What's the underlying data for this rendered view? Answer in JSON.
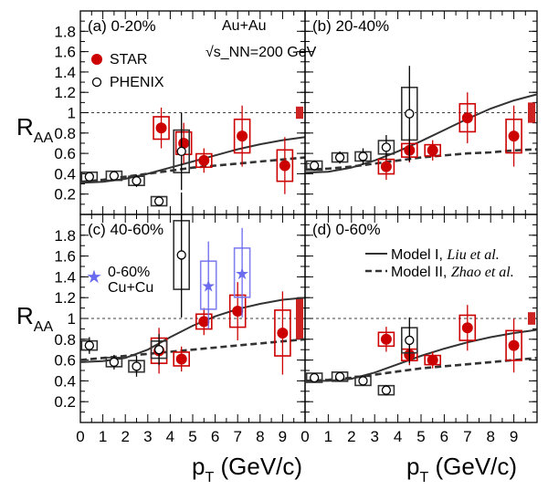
{
  "chart_data": [
    {
      "type": "scatter",
      "title": "(a) 0-20%",
      "annotation": "Au+Au",
      "annotation2": "√s_NN=200 GeV",
      "xlim": [
        0,
        10
      ],
      "ylim": [
        0,
        2
      ],
      "x_ticks": [
        0,
        1,
        2,
        3,
        4,
        5,
        6,
        7,
        8,
        9
      ],
      "y_ticks": [
        0.2,
        0.4,
        0.6,
        0.8,
        1,
        1.2,
        1.4,
        1.6,
        1.8
      ],
      "series": [
        {
          "name": "STAR",
          "color": "#cc0000",
          "marker": "filled-circle",
          "points": [
            {
              "x": 3.6,
              "y": 0.85,
              "err": 0.2
            },
            {
              "x": 4.6,
              "y": 0.7,
              "err": 0.2
            },
            {
              "x": 5.5,
              "y": 0.53,
              "err": 0.12
            },
            {
              "x": 7.2,
              "y": 0.77,
              "err": 0.3
            },
            {
              "x": 9.1,
              "y": 0.48,
              "err": 0.28
            }
          ]
        },
        {
          "name": "PHENIX",
          "color": "#000000",
          "marker": "open-circle",
          "points": [
            {
              "x": 0.4,
              "y": 0.37,
              "err": 0.04
            },
            {
              "x": 1.5,
              "y": 0.38,
              "err": 0.04
            },
            {
              "x": 2.5,
              "y": 0.33,
              "err": 0.06
            },
            {
              "x": 3.5,
              "y": 0.13,
              "err": 0.05
            },
            {
              "x": 4.5,
              "y": 0.62,
              "err": 0.38
            }
          ]
        }
      ],
      "model1": {
        "x": [
          0,
          1,
          2,
          3,
          4,
          5,
          6,
          7,
          8,
          9,
          10
        ],
        "y": [
          0.31,
          0.32,
          0.35,
          0.4,
          0.46,
          0.52,
          0.58,
          0.64,
          0.69,
          0.73,
          0.76
        ]
      },
      "model2": {
        "x": [
          0,
          1,
          2,
          3,
          4,
          5,
          6,
          7,
          8,
          9,
          10
        ],
        "y": [
          0.32,
          0.34,
          0.37,
          0.4,
          0.43,
          0.46,
          0.48,
          0.5,
          0.52,
          0.54,
          0.56
        ]
      }
    },
    {
      "type": "scatter",
      "title": "(b) 20-40%",
      "xlim": [
        0,
        10
      ],
      "ylim": [
        0,
        2
      ],
      "x_ticks": [
        0,
        1,
        2,
        3,
        4,
        5,
        6,
        7,
        8,
        9
      ],
      "y_ticks": [
        0.2,
        0.4,
        0.6,
        0.8,
        1,
        1.2,
        1.4,
        1.6,
        1.8
      ],
      "series": [
        {
          "name": "STAR",
          "color": "#cc0000",
          "marker": "filled-circle",
          "points": [
            {
              "x": 3.5,
              "y": 0.47,
              "err": 0.13
            },
            {
              "x": 4.5,
              "y": 0.63,
              "err": 0.12
            },
            {
              "x": 5.5,
              "y": 0.63,
              "err": 0.1
            },
            {
              "x": 7.0,
              "y": 0.95,
              "err": 0.25
            },
            {
              "x": 9.0,
              "y": 0.77,
              "err": 0.3
            }
          ]
        },
        {
          "name": "PHENIX",
          "color": "#000000",
          "marker": "open-circle",
          "points": [
            {
              "x": 0.4,
              "y": 0.48,
              "err": 0.05
            },
            {
              "x": 1.5,
              "y": 0.56,
              "err": 0.06
            },
            {
              "x": 2.5,
              "y": 0.57,
              "err": 0.08
            },
            {
              "x": 3.5,
              "y": 0.66,
              "err": 0.12
            },
            {
              "x": 4.5,
              "y": 0.99,
              "err": 0.47
            }
          ]
        }
      ],
      "model1": {
        "x": [
          0,
          1,
          2,
          3,
          4,
          5,
          6,
          7,
          8,
          9,
          10
        ],
        "y": [
          0.41,
          0.42,
          0.46,
          0.53,
          0.62,
          0.72,
          0.83,
          0.94,
          1.04,
          1.12,
          1.18
        ]
      },
      "model2": {
        "x": [
          0,
          1,
          2,
          3,
          4,
          5,
          6,
          7,
          8,
          9,
          10
        ],
        "y": [
          0.44,
          0.45,
          0.47,
          0.5,
          0.53,
          0.56,
          0.58,
          0.6,
          0.61,
          0.63,
          0.64
        ]
      }
    },
    {
      "type": "scatter",
      "title": "(c) 40-60%",
      "legend_extra": "0-60%",
      "legend_extra2": "Cu+Cu",
      "xlim": [
        0,
        10
      ],
      "ylim": [
        0,
        2
      ],
      "x_ticks": [
        0,
        1,
        2,
        3,
        4,
        5,
        6,
        7,
        8,
        9
      ],
      "y_ticks": [
        0.2,
        0.4,
        0.6,
        0.8,
        1,
        1.2,
        1.4,
        1.6,
        1.8
      ],
      "series": [
        {
          "name": "STAR",
          "color": "#cc0000",
          "marker": "filled-circle",
          "points": [
            {
              "x": 3.5,
              "y": 0.69,
              "err": 0.22
            },
            {
              "x": 4.5,
              "y": 0.61,
              "err": 0.12
            },
            {
              "x": 5.5,
              "y": 0.97,
              "err": 0.13
            },
            {
              "x": 7.0,
              "y": 1.07,
              "err": 0.28
            },
            {
              "x": 9.0,
              "y": 0.86,
              "err": 0.4
            }
          ]
        },
        {
          "name": "PHENIX",
          "color": "#000000",
          "marker": "open-circle",
          "points": [
            {
              "x": 0.4,
              "y": 0.74,
              "err": 0.08
            },
            {
              "x": 1.5,
              "y": 0.58,
              "err": 0.07
            },
            {
              "x": 2.5,
              "y": 0.54,
              "err": 0.1
            },
            {
              "x": 3.5,
              "y": 0.7,
              "err": 0.15
            },
            {
              "x": 4.5,
              "y": 1.61,
              "err": 0.6
            }
          ]
        },
        {
          "name": "0-60% Cu+Cu",
          "color": "#6b6bf0",
          "marker": "star",
          "points": [
            {
              "x": 5.7,
              "y": 1.32,
              "err": 0.42
            },
            {
              "x": 7.2,
              "y": 1.44,
              "err": 0.43
            }
          ]
        }
      ],
      "model1": {
        "x": [
          0,
          1,
          2,
          3,
          4,
          5,
          6,
          7,
          8,
          9,
          10
        ],
        "y": [
          0.58,
          0.59,
          0.62,
          0.7,
          0.82,
          0.93,
          1.02,
          1.09,
          1.14,
          1.18,
          1.2
        ]
      },
      "model2": {
        "x": [
          0,
          1,
          2,
          3,
          4,
          5,
          6,
          7,
          8,
          9,
          10
        ],
        "y": [
          0.6,
          0.62,
          0.64,
          0.66,
          0.68,
          0.7,
          0.72,
          0.74,
          0.76,
          0.78,
          0.8
        ]
      }
    },
    {
      "type": "scatter",
      "title": "(d) 0-60%",
      "xlim": [
        0,
        10
      ],
      "ylim": [
        0,
        2
      ],
      "x_ticks": [
        0,
        1,
        2,
        3,
        4,
        5,
        6,
        7,
        8,
        9
      ],
      "y_ticks": [
        0.2,
        0.4,
        0.6,
        0.8,
        1,
        1.2,
        1.4,
        1.6,
        1.8
      ],
      "legend": [
        {
          "label": "Model I, ",
          "italic": "Liu et al.",
          "style": "solid"
        },
        {
          "label": "Model II, ",
          "italic": "Zhao et al.",
          "style": "dashed"
        }
      ],
      "series": [
        {
          "name": "STAR",
          "color": "#cc0000",
          "marker": "filled-circle",
          "points": [
            {
              "x": 3.5,
              "y": 0.8,
              "err": 0.12
            },
            {
              "x": 4.5,
              "y": 0.65,
              "err": 0.1
            },
            {
              "x": 5.5,
              "y": 0.6,
              "err": 0.08
            },
            {
              "x": 7.0,
              "y": 0.91,
              "err": 0.22
            },
            {
              "x": 9.0,
              "y": 0.74,
              "err": 0.26
            }
          ]
        },
        {
          "name": "PHENIX",
          "color": "#000000",
          "marker": "open-circle",
          "points": [
            {
              "x": 0.4,
              "y": 0.43,
              "err": 0.02
            },
            {
              "x": 1.5,
              "y": 0.44,
              "err": 0.02
            },
            {
              "x": 2.5,
              "y": 0.4,
              "err": 0.04
            },
            {
              "x": 3.5,
              "y": 0.31,
              "err": 0.05
            },
            {
              "x": 4.5,
              "y": 0.79,
              "err": 0.22
            }
          ]
        }
      ],
      "model1": {
        "x": [
          0,
          1,
          2,
          3,
          4,
          5,
          6,
          7,
          8,
          9,
          10
        ],
        "y": [
          0.4,
          0.4,
          0.42,
          0.48,
          0.56,
          0.64,
          0.71,
          0.77,
          0.82,
          0.86,
          0.89
        ]
      },
      "model2": {
        "x": [
          0,
          1,
          2,
          3,
          4,
          5,
          6,
          7,
          8,
          9,
          10
        ],
        "y": [
          0.4,
          0.41,
          0.43,
          0.46,
          0.49,
          0.52,
          0.54,
          0.56,
          0.58,
          0.6,
          0.62
        ]
      }
    }
  ],
  "axes": {
    "ylabel_main": "R",
    "ylabel_sub": "AA",
    "xlabel_main": "p",
    "xlabel_sub": "T",
    "xlabel_unit": " (GeV/c)"
  },
  "legend_main": {
    "star": "STAR",
    "phenix": "PHENIX"
  },
  "colors": {
    "star": "#cc0000",
    "phenix": "#000000",
    "cucu": "#6b6bf0",
    "sysbox_star": "#cc0000",
    "sysbox_phenix": "#333333",
    "sysbox_cucu": "#8080f0"
  }
}
